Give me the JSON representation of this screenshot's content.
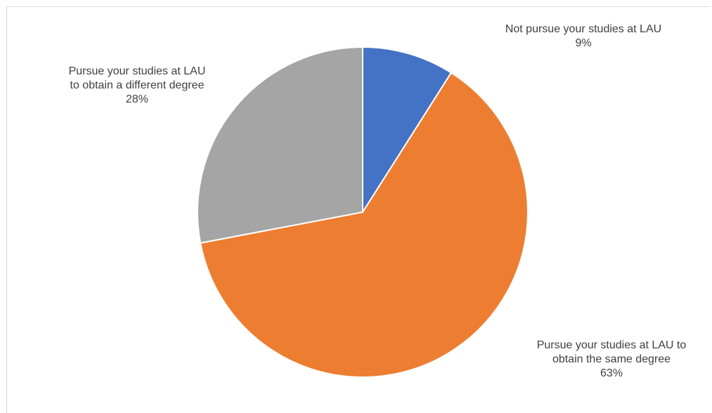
{
  "chart_data": {
    "type": "pie",
    "title": "",
    "start_angle_deg": 0,
    "direction": "clockwise",
    "legend": "none",
    "slices": [
      {
        "category_lines": [
          "Not pursue your studies at LAU"
        ],
        "value": 9,
        "value_label": "9%",
        "color": "#4472C4"
      },
      {
        "category_lines": [
          "Pursue your studies at LAU to",
          "obtain the same degree"
        ],
        "value": 63,
        "value_label": "63%",
        "color": "#ED7D31"
      },
      {
        "category_lines": [
          "Pursue your studies at LAU",
          "to obtain a different degree"
        ],
        "value": 28,
        "value_label": "28%",
        "color": "#A5A5A5"
      }
    ]
  }
}
